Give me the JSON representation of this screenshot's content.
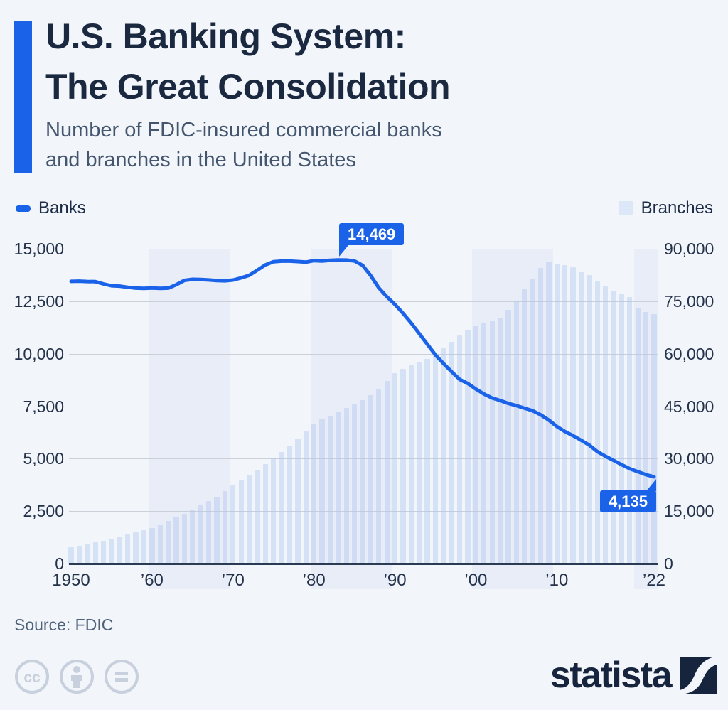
{
  "header": {
    "title_line1": "U.S. Banking System:",
    "title_line2": "The Great Consolidation",
    "subtitle_line1": "Number of FDIC-insured commercial banks",
    "subtitle_line2": "and branches in the United States",
    "accent_color": "#1a63e8"
  },
  "legend": {
    "banks_label": "Banks",
    "branches_label": "Branches"
  },
  "footer": {
    "source": "Source: FDIC",
    "brand": "statista",
    "license_icons": [
      "cc-icon",
      "attribution-icon",
      "equals-icon"
    ]
  },
  "chart_data": {
    "type": "combo",
    "x_start": 1950,
    "x_end": 2022,
    "x_tick_years": [
      1950,
      1960,
      1970,
      1980,
      1990,
      2000,
      2010,
      2022
    ],
    "x_tick_labels": [
      "1950",
      "’60",
      "’70",
      "’80",
      "’90",
      "’00",
      "’10",
      "’22"
    ],
    "left_axis": {
      "max": 15000,
      "ticks": [
        "0",
        "2,500",
        "5,000",
        "7,500",
        "10,000",
        "12,500",
        "15,000"
      ]
    },
    "right_axis": {
      "max": 90000,
      "ticks": [
        "0",
        "15,000",
        "30,000",
        "45,000",
        "60,000",
        "75,000",
        "90,000"
      ]
    },
    "decade_bands": [
      [
        1960,
        1970
      ],
      [
        1980,
        1990
      ],
      [
        2000,
        2010
      ],
      [
        2020,
        2023.2
      ]
    ],
    "colors": {
      "line": "#1a63e8",
      "bar": "rgba(177,200,237,0.45)",
      "band": "#e8edf7",
      "grid": "#c9d0da",
      "zero_axis": "#2b3b54"
    },
    "series": [
      {
        "name": "Banks",
        "type": "line",
        "axis": "left",
        "values": [
          13446,
          13455,
          13439,
          13432,
          13323,
          13237,
          13218,
          13165,
          13124,
          13114,
          13126,
          13115,
          13124,
          13291,
          13493,
          13544,
          13538,
          13514,
          13487,
          13473,
          13511,
          13612,
          13733,
          13976,
          14230,
          14385,
          14410,
          14412,
          14391,
          14364,
          14434,
          14414,
          14451,
          14469,
          14460,
          14417,
          14210,
          13723,
          13137,
          12715,
          12347,
          11927,
          11466,
          10958,
          10451,
          9941,
          9528,
          9143,
          8774,
          8580,
          8315,
          8080,
          7888,
          7770,
          7631,
          7526,
          7401,
          7284,
          7087,
          6840,
          6530,
          6291,
          6096,
          5876,
          5643,
          5338,
          5112,
          4918,
          4715,
          4519,
          4377,
          4236,
          4135
        ]
      },
      {
        "name": "Branches",
        "type": "bar",
        "axis": "right",
        "values": [
          4700,
          5150,
          5600,
          6100,
          6600,
          7100,
          7700,
          8300,
          8950,
          9550,
          10200,
          11150,
          12150,
          13200,
          14300,
          15500,
          16700,
          17900,
          19200,
          20700,
          22300,
          23800,
          25300,
          26900,
          28500,
          30200,
          32000,
          33800,
          35700,
          37800,
          40000,
          41200,
          42300,
          43400,
          44500,
          45600,
          46800,
          48200,
          50000,
          52200,
          54500,
          55600,
          56600,
          57500,
          58600,
          60000,
          61600,
          63300,
          65200,
          66800,
          67800,
          68600,
          69400,
          70300,
          72500,
          75000,
          78500,
          81500,
          84500,
          86200,
          85700,
          85300,
          84800,
          83400,
          82500,
          80900,
          79300,
          78100,
          77200,
          76200,
          73000,
          72000,
          71300
        ]
      }
    ],
    "annotations": [
      {
        "text": "14,469",
        "year": 1983,
        "value": 14469
      },
      {
        "text": "4,135",
        "year": 2022,
        "value": 4135
      }
    ]
  }
}
